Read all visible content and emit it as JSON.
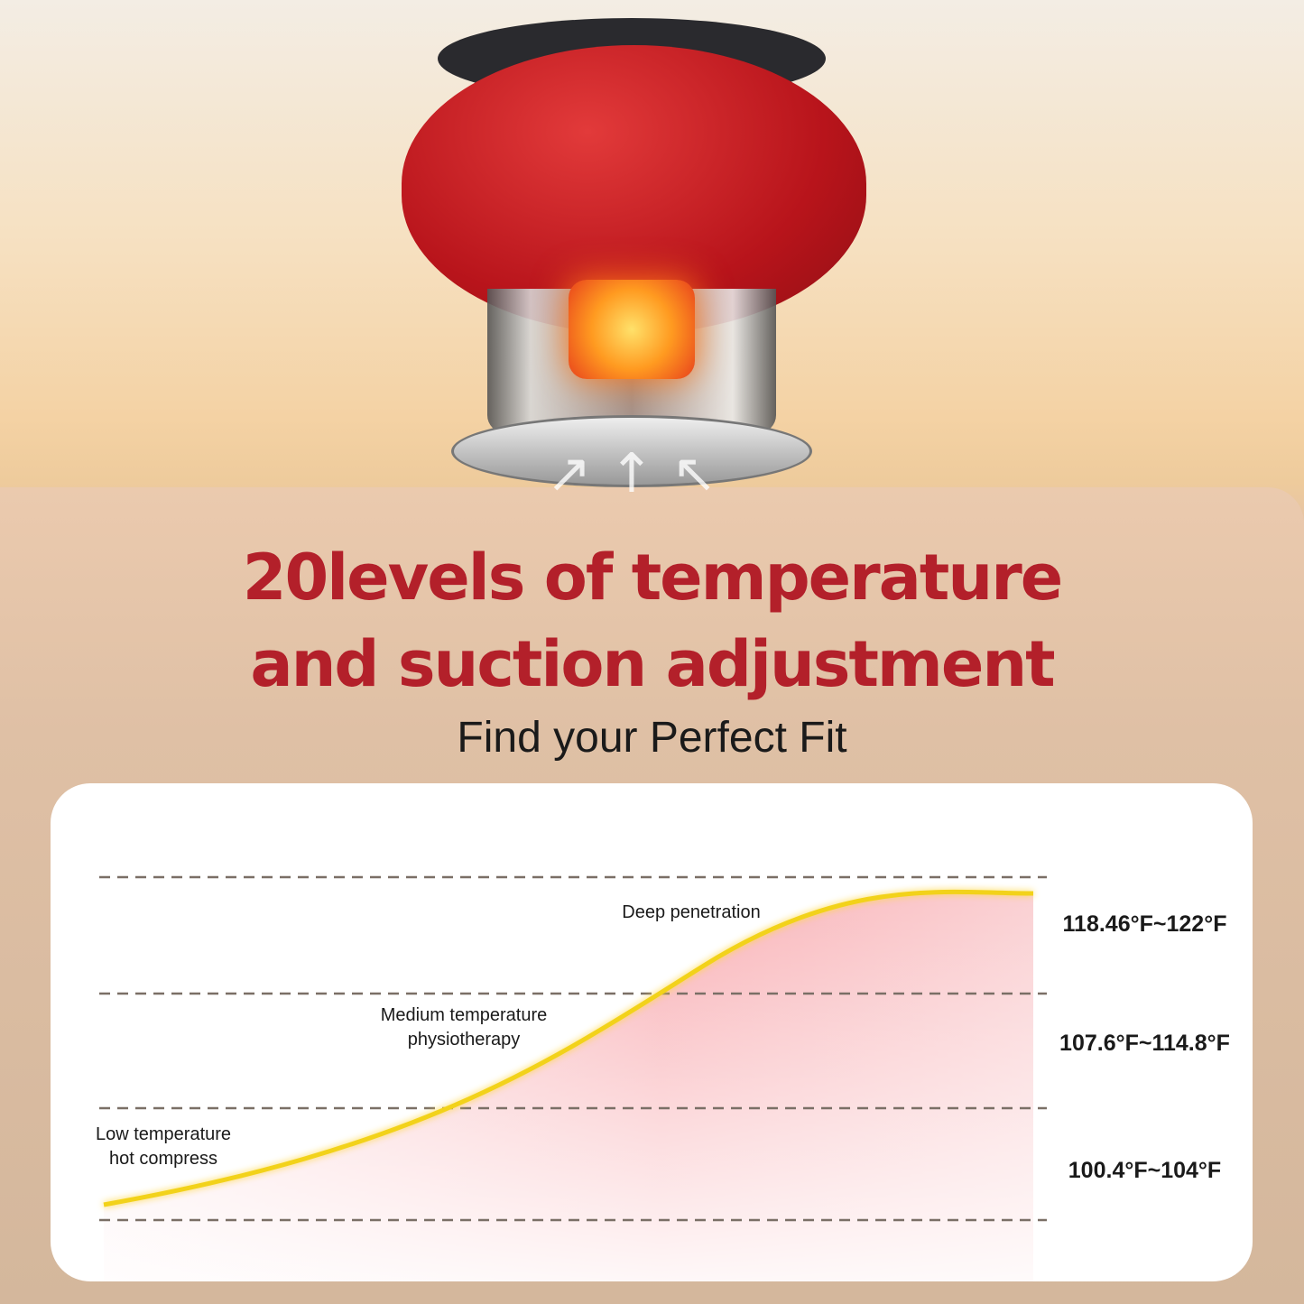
{
  "headline": {
    "line1": "20levels of temperature",
    "line2": "and suction adjustment"
  },
  "subtitle": "Find your Perfect Fit",
  "chart": {
    "stages": [
      {
        "label_line1": "Deep penetration",
        "label_line2": "",
        "range": "118.46°F~122°F"
      },
      {
        "label_line1": "Medium temperature",
        "label_line2": "physiotherapy",
        "range": "107.6°F~114.8°F"
      },
      {
        "label_line1": "Low temperature",
        "label_line2": "hot compress",
        "range": "100.4°F~104°F"
      }
    ],
    "curve_color": "#f2d21a",
    "fill_color": "#f7a0a6"
  },
  "colors": {
    "headline": "#b3202a",
    "device": "#c8161d"
  },
  "icons": [
    "cupping-device-illustration",
    "up-arrow-icon"
  ]
}
